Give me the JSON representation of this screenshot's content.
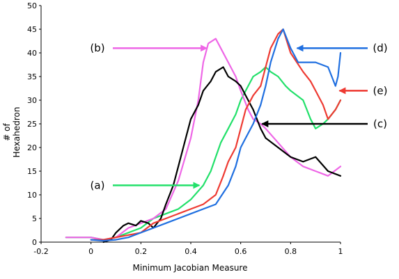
{
  "chart_data": {
    "type": "line",
    "title": "",
    "xlabel": "Minimum Jacobian Measure",
    "ylabel_lines": [
      "# of",
      "Hexahedron"
    ],
    "xlim": [
      -0.2,
      1.0
    ],
    "ylim": [
      0,
      50
    ],
    "x_ticks": [
      -0.2,
      0,
      0.2,
      0.4,
      0.6,
      0.8,
      1
    ],
    "x_tick_labels": [
      "-0.2",
      "0",
      "0.2",
      "0.4",
      "0.6",
      "0.8",
      "1"
    ],
    "y_ticks": [
      0,
      5,
      10,
      15,
      20,
      25,
      30,
      35,
      40,
      45,
      50
    ],
    "y_tick_labels": [
      "0",
      "5",
      "10",
      "15",
      "20",
      "25",
      "30",
      "35",
      "40",
      "45",
      "50"
    ],
    "grid": false,
    "series": [
      {
        "name": "(a)",
        "color": "#22e06a",
        "x": [
          -0.1,
          0.0,
          0.05,
          0.1,
          0.15,
          0.2,
          0.25,
          0.3,
          0.35,
          0.4,
          0.45,
          0.48,
          0.5,
          0.52,
          0.55,
          0.58,
          0.6,
          0.62,
          0.65,
          0.68,
          0.7,
          0.72,
          0.75,
          0.78,
          0.8,
          0.85,
          0.88,
          0.9,
          0.93,
          0.95,
          0.98,
          1.0
        ],
        "y": [
          1,
          1,
          0.5,
          1,
          2,
          3,
          5,
          6,
          7,
          9,
          12,
          15,
          18,
          21,
          24,
          27,
          30,
          32,
          35,
          36,
          37,
          36,
          35,
          33,
          32,
          30,
          26,
          24,
          25,
          26,
          28,
          30
        ]
      },
      {
        "name": "(b)",
        "color": "#ee66e6",
        "x": [
          -0.1,
          0.0,
          0.05,
          0.1,
          0.15,
          0.2,
          0.25,
          0.3,
          0.35,
          0.4,
          0.43,
          0.45,
          0.47,
          0.5,
          0.52,
          0.55,
          0.58,
          0.6,
          0.63,
          0.65,
          0.68,
          0.7,
          0.75,
          0.8,
          0.85,
          0.9,
          0.95,
          1.0
        ],
        "y": [
          1,
          1,
          0.5,
          1,
          3,
          4,
          5,
          7,
          13,
          22,
          30,
          38,
          42,
          43,
          41,
          38,
          35,
          32,
          28,
          26,
          25,
          24,
          21,
          18,
          16,
          15,
          14,
          16
        ]
      },
      {
        "name": "(c)",
        "color": "#000000",
        "x": [
          0.05,
          0.08,
          0.1,
          0.13,
          0.15,
          0.18,
          0.2,
          0.23,
          0.25,
          0.28,
          0.3,
          0.33,
          0.35,
          0.38,
          0.4,
          0.43,
          0.45,
          0.48,
          0.5,
          0.53,
          0.55,
          0.58,
          0.6,
          0.62,
          0.65,
          0.68,
          0.7,
          0.75,
          0.8,
          0.85,
          0.9,
          0.95,
          1.0
        ],
        "y": [
          0,
          0.5,
          2,
          3.5,
          4,
          3.5,
          4.5,
          4,
          3,
          5,
          8,
          12,
          16,
          22,
          26,
          29,
          32,
          34,
          36,
          37,
          35,
          34,
          33,
          31,
          28,
          24,
          22,
          20,
          18,
          17,
          18,
          15,
          14
        ]
      },
      {
        "name": "(e)",
        "color": "#ee3a32",
        "x": [
          0.0,
          0.05,
          0.1,
          0.15,
          0.2,
          0.25,
          0.3,
          0.35,
          0.4,
          0.45,
          0.5,
          0.53,
          0.55,
          0.58,
          0.6,
          0.62,
          0.65,
          0.68,
          0.7,
          0.72,
          0.75,
          0.77,
          0.8,
          0.85,
          0.88,
          0.9,
          0.93,
          0.95,
          0.98,
          1.0
        ],
        "y": [
          0.5,
          0.5,
          1,
          1.5,
          2,
          4,
          5,
          6,
          7,
          8,
          10,
          14,
          17,
          20,
          24,
          28,
          31,
          33,
          37,
          41,
          44,
          45,
          40,
          36,
          34,
          32,
          29,
          26,
          28,
          30
        ]
      },
      {
        "name": "(d)",
        "color": "#1f6fe0",
        "x": [
          0.0,
          0.05,
          0.1,
          0.15,
          0.2,
          0.25,
          0.3,
          0.35,
          0.4,
          0.45,
          0.5,
          0.55,
          0.58,
          0.6,
          0.62,
          0.65,
          0.68,
          0.7,
          0.72,
          0.75,
          0.77,
          0.8,
          0.83,
          0.85,
          0.9,
          0.95,
          0.98,
          0.99,
          1.0
        ],
        "y": [
          0.5,
          0.3,
          0.5,
          1,
          2,
          3,
          4,
          5,
          6,
          7,
          8,
          12,
          16,
          20,
          22,
          25,
          29,
          33,
          38,
          43,
          45,
          41,
          38,
          38,
          38,
          37,
          33,
          35,
          40
        ]
      }
    ],
    "annotations": [
      {
        "label": "(a)",
        "series": "(a)",
        "arrow_color": "#22e06a",
        "side": "left",
        "target": [
          0.44,
          12
        ]
      },
      {
        "label": "(b)",
        "series": "(b)",
        "arrow_color": "#ee66e6",
        "side": "left",
        "target": [
          0.47,
          41
        ]
      },
      {
        "label": "(c)",
        "series": "(c)",
        "arrow_color": "#000000",
        "side": "right",
        "target": [
          0.68,
          25
        ]
      },
      {
        "label": "(d)",
        "series": "(d)",
        "arrow_color": "#1f6fe0",
        "side": "right",
        "target": [
          0.82,
          41
        ]
      },
      {
        "label": "(e)",
        "series": "(e)",
        "arrow_color": "#ee3a32",
        "side": "right",
        "target": [
          0.99,
          32
        ]
      }
    ]
  }
}
